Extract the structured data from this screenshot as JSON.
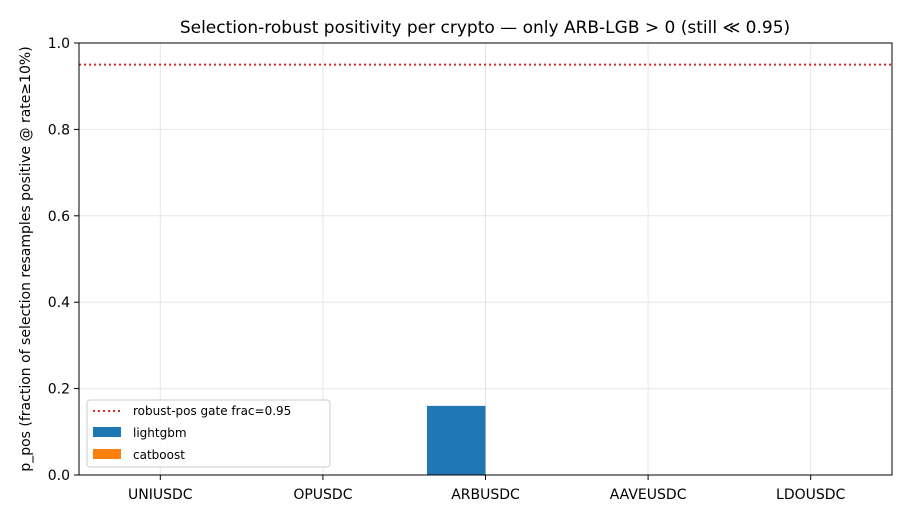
{
  "chart_data": {
    "type": "bar",
    "title": "Selection-robust positivity per crypto — only ARB-LGB > 0 (still ≪ 0.95)",
    "xlabel": "",
    "ylabel": "p_pos (fraction of selection resamples positive @ rate≥10%)",
    "ylim": [
      0,
      1.0
    ],
    "yticks": [
      "0.0",
      "0.2",
      "0.4",
      "0.6",
      "0.8",
      "1.0"
    ],
    "ytick_values": [
      0,
      0.2,
      0.4,
      0.6,
      0.8,
      1.0
    ],
    "grid": true,
    "legend_position": "lower-left",
    "categories": [
      "UNIUSDC",
      "OPUSDC",
      "ARBUSDC",
      "AAVEUSDC",
      "LDOUSDC"
    ],
    "series": [
      {
        "name": "lightgbm",
        "color": "#1f77b4",
        "values": [
          0,
          0,
          0.16,
          0,
          0
        ]
      },
      {
        "name": "catboost",
        "color": "#ff7f0e",
        "values": [
          0,
          0,
          0,
          0,
          0
        ]
      }
    ],
    "reference_line": {
      "label": "robust-pos gate frac=0.95",
      "value": 0.95,
      "color": "#d62728",
      "style": "dotted"
    }
  }
}
